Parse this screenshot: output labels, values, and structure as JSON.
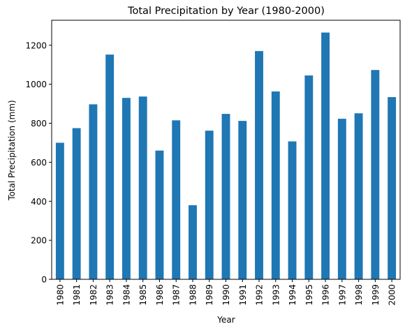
{
  "chart_data": {
    "type": "bar",
    "title": "Total Precipitation by Year (1980-2000)",
    "xlabel": "Year",
    "ylabel": "Total Precipitation (mm)",
    "categories": [
      "1980",
      "1981",
      "1982",
      "1983",
      "1984",
      "1985",
      "1986",
      "1987",
      "1988",
      "1989",
      "1990",
      "1991",
      "1992",
      "1993",
      "1994",
      "1995",
      "1996",
      "1997",
      "1998",
      "1999",
      "2000"
    ],
    "values": [
      700,
      775,
      897,
      1152,
      930,
      937,
      660,
      815,
      380,
      762,
      848,
      812,
      1170,
      963,
      707,
      1045,
      1265,
      823,
      851,
      1073,
      934
    ],
    "ylim": [
      0,
      1328
    ],
    "yticks": [
      0,
      200,
      400,
      600,
      800,
      1000,
      1200
    ],
    "grid": false,
    "legend": "none",
    "bar_color": "#1f77b4"
  }
}
